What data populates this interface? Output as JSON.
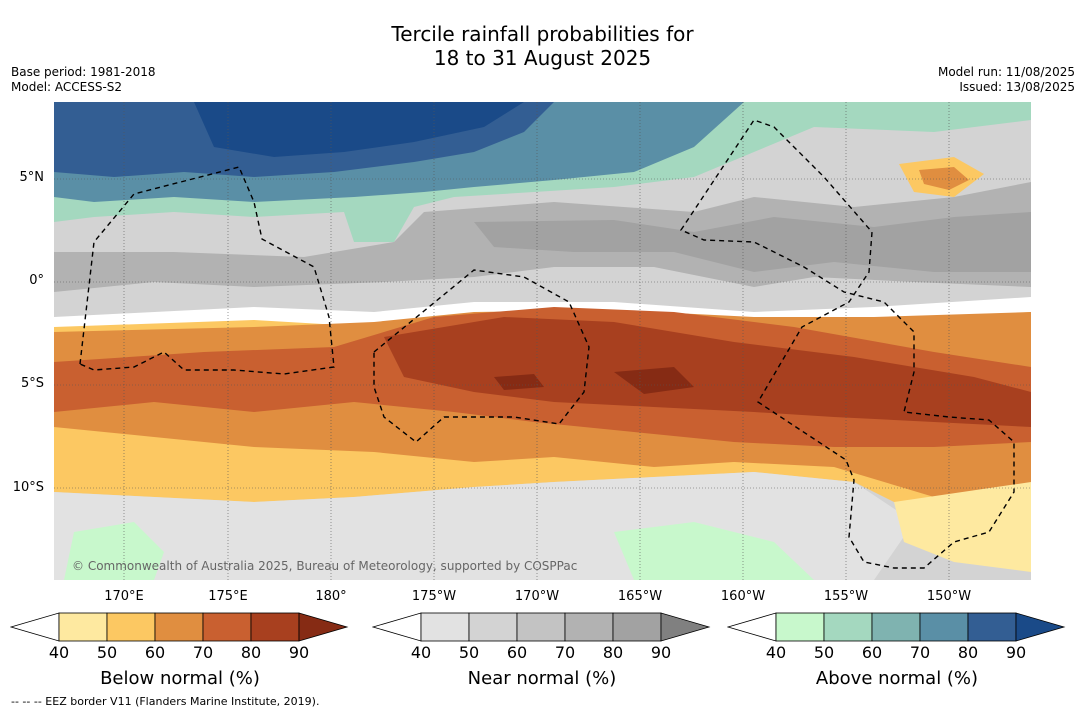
{
  "title_line1": "Tercile rainfall probabilities for",
  "title_line2": "18 to 31 August 2025",
  "meta_left": [
    "Base period: 1981-2018",
    "Model: ACCESS-S2"
  ],
  "meta_right": [
    "Model run: 11/08/2025",
    "Issued: 13/08/2025"
  ],
  "lat_labels": [
    "5°N",
    "0°",
    "5°S",
    "10°S"
  ],
  "lon_labels": [
    "170°E",
    "175°E",
    "180°",
    "175°W",
    "170°W",
    "165°W",
    "160°W",
    "155°W",
    "150°W"
  ],
  "copyright": "© Commonwealth of Australia 2025, Bureau of Meteorology, supported by COSPPac",
  "footnote": "-- -- -- EEZ border V11 (Flanders Marine Institute, 2019).",
  "colorbars": [
    {
      "label": "Below normal (%)",
      "ticks": [
        "40",
        "50",
        "60",
        "70",
        "80",
        "90"
      ],
      "colors": [
        "#ffffff",
        "#fee9a0",
        "#fcc862",
        "#e08e40",
        "#c96030",
        "#a8401f",
        "#862b14"
      ]
    },
    {
      "label": "Near normal (%)",
      "ticks": [
        "40",
        "50",
        "60",
        "70",
        "80",
        "90"
      ],
      "colors": [
        "#ffffff",
        "#e2e2e2",
        "#d3d3d3",
        "#c3c3c3",
        "#b2b2b2",
        "#a2a2a2",
        "#808080"
      ]
    },
    {
      "label": "Above normal (%)",
      "ticks": [
        "40",
        "50",
        "60",
        "70",
        "80",
        "90"
      ],
      "colors": [
        "#ffffff",
        "#c8f8cc",
        "#a4d8bf",
        "#7fb3b0",
        "#5a8fa6",
        "#335e93",
        "#1a4a88"
      ]
    }
  ]
}
